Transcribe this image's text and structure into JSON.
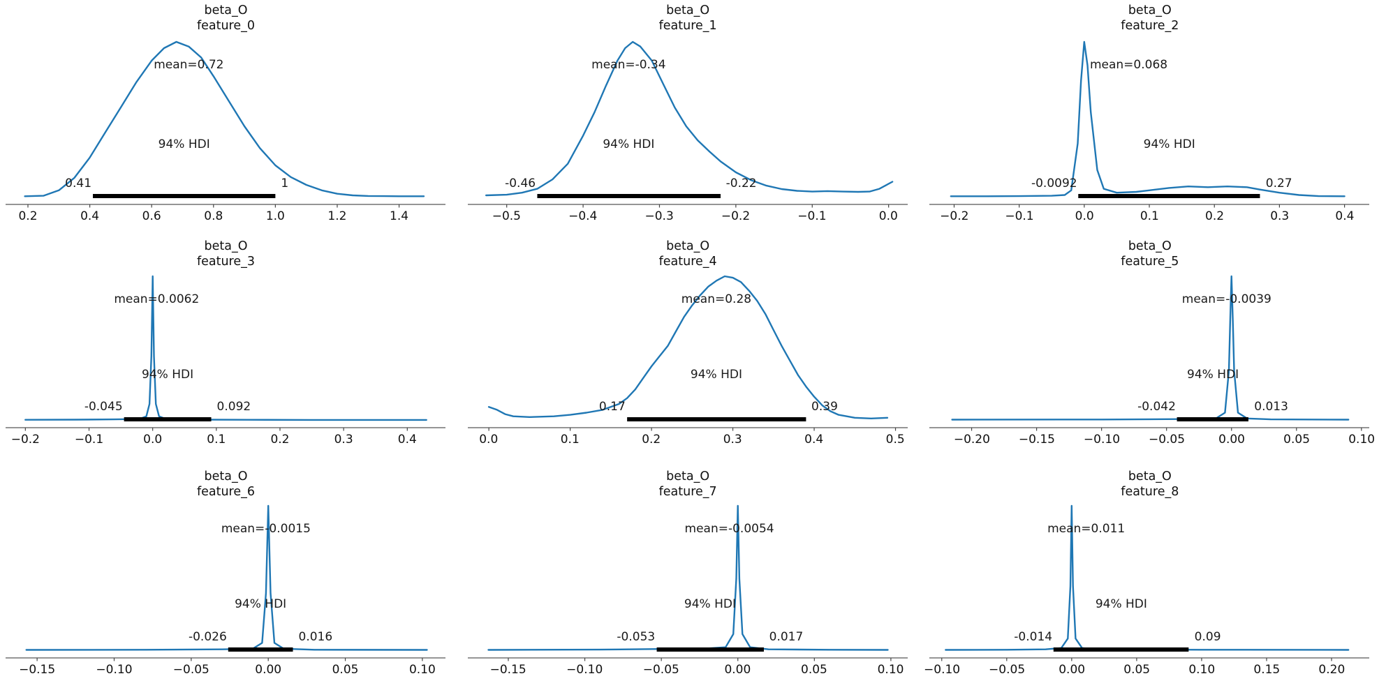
{
  "figure": {
    "background": "#ffffff",
    "curve_color": "#1f77b4",
    "hdi_bar_color": "#000000",
    "axis_color": "#565656",
    "text_color": "#1a1a1a",
    "hdi_probability": "94%"
  },
  "chart_data": [
    {
      "type": "line",
      "title": "beta_O",
      "subtitle": "feature_0",
      "mean": 0.72,
      "mean_label": "mean=0.72",
      "hdi_label": "94% HDI",
      "hdi": [
        0.41,
        1.0
      ],
      "hdi_lower_label": "0.41",
      "hdi_upper_label": "1",
      "xlim": [
        0.13,
        1.55
      ],
      "xticks": [
        0.2,
        0.4,
        0.6,
        0.8,
        1.0,
        1.2,
        1.4
      ],
      "xtick_labels": [
        "0.2",
        "0.4",
        "0.6",
        "0.8",
        "1.0",
        "1.2",
        "1.4"
      ],
      "curve": {
        "x": [
          0.19,
          0.25,
          0.3,
          0.35,
          0.4,
          0.45,
          0.5,
          0.55,
          0.6,
          0.64,
          0.68,
          0.72,
          0.76,
          0.8,
          0.85,
          0.9,
          0.95,
          1.0,
          1.05,
          1.1,
          1.15,
          1.2,
          1.25,
          1.3,
          1.35,
          1.4,
          1.48
        ],
        "y": [
          0.012,
          0.015,
          0.05,
          0.13,
          0.26,
          0.42,
          0.58,
          0.74,
          0.88,
          0.96,
          1.0,
          0.97,
          0.9,
          0.78,
          0.62,
          0.46,
          0.32,
          0.21,
          0.135,
          0.085,
          0.05,
          0.028,
          0.018,
          0.014,
          0.013,
          0.012,
          0.012
        ]
      }
    },
    {
      "type": "line",
      "title": "beta_O",
      "subtitle": "feature_1",
      "mean": -0.34,
      "mean_label": "mean=-0.34",
      "hdi_label": "94% HDI",
      "hdi": [
        -0.46,
        -0.22
      ],
      "hdi_lower_label": "-0.46",
      "hdi_upper_label": "-0.22",
      "xlim": [
        -0.55,
        0.025
      ],
      "xticks": [
        -0.5,
        -0.4,
        -0.3,
        -0.2,
        -0.1,
        0.0
      ],
      "xtick_labels": [
        "−0.5",
        "−0.4",
        "−0.3",
        "−0.2",
        "−0.1",
        "0.0"
      ],
      "curve": {
        "x": [
          -0.527,
          -0.5,
          -0.48,
          -0.46,
          -0.44,
          -0.42,
          -0.4,
          -0.385,
          -0.37,
          -0.355,
          -0.345,
          -0.335,
          -0.325,
          -0.31,
          -0.295,
          -0.28,
          -0.265,
          -0.25,
          -0.235,
          -0.22,
          -0.2,
          -0.18,
          -0.16,
          -0.14,
          -0.12,
          -0.1,
          -0.08,
          -0.06,
          -0.04,
          -0.025,
          -0.012,
          0.005
        ],
        "y": [
          0.018,
          0.022,
          0.035,
          0.06,
          0.12,
          0.22,
          0.4,
          0.55,
          0.72,
          0.88,
          0.96,
          1.0,
          0.97,
          0.88,
          0.73,
          0.58,
          0.46,
          0.37,
          0.3,
          0.235,
          0.165,
          0.115,
          0.08,
          0.058,
          0.047,
          0.042,
          0.045,
          0.042,
          0.04,
          0.042,
          0.06,
          0.105
        ]
      }
    },
    {
      "type": "line",
      "title": "beta_O",
      "subtitle": "feature_2",
      "mean": 0.068,
      "mean_label": "mean=0.068",
      "hdi_label": "94% HDI",
      "hdi": [
        -0.0092,
        0.27
      ],
      "hdi_lower_label": "-0.0092",
      "hdi_upper_label": "0.27",
      "xlim": [
        -0.237,
        0.438
      ],
      "xticks": [
        -0.2,
        -0.1,
        0.0,
        0.1,
        0.2,
        0.3,
        0.4
      ],
      "xtick_labels": [
        "−0.2",
        "−0.1",
        "0.0",
        "0.1",
        "0.2",
        "0.3",
        "0.4"
      ],
      "curve": {
        "x": [
          -0.205,
          -0.15,
          -0.1,
          -0.05,
          -0.03,
          -0.02,
          -0.01,
          -0.005,
          0.0,
          0.005,
          0.01,
          0.02,
          0.03,
          0.05,
          0.08,
          0.1,
          0.13,
          0.16,
          0.19,
          0.22,
          0.25,
          0.27,
          0.3,
          0.33,
          0.36,
          0.4
        ],
        "y": [
          0.012,
          0.012,
          0.013,
          0.015,
          0.02,
          0.05,
          0.35,
          0.75,
          1.0,
          0.85,
          0.55,
          0.18,
          0.06,
          0.035,
          0.04,
          0.05,
          0.065,
          0.075,
          0.07,
          0.075,
          0.07,
          0.055,
          0.035,
          0.02,
          0.013,
          0.012
        ]
      }
    },
    {
      "type": "line",
      "title": "beta_O",
      "subtitle": "feature_3",
      "mean": 0.0062,
      "mean_label": "mean=0.0062",
      "hdi_label": "94% HDI",
      "hdi": [
        -0.045,
        0.092
      ],
      "hdi_lower_label": "-0.045",
      "hdi_upper_label": "0.092",
      "xlim": [
        -0.23,
        0.46
      ],
      "xticks": [
        -0.2,
        -0.1,
        0.0,
        0.1,
        0.2,
        0.3,
        0.4
      ],
      "xtick_labels": [
        "−0.2",
        "−0.1",
        "0.0",
        "0.1",
        "0.2",
        "0.3",
        "0.4"
      ],
      "curve": {
        "x": [
          -0.2,
          -0.12,
          -0.06,
          -0.03,
          -0.02,
          -0.01,
          -0.005,
          -0.002,
          0.0,
          0.002,
          0.005,
          0.01,
          0.02,
          0.04,
          0.08,
          0.15,
          0.25,
          0.35,
          0.43
        ],
        "y": [
          0.011,
          0.012,
          0.014,
          0.016,
          0.018,
          0.035,
          0.12,
          0.45,
          1.0,
          0.45,
          0.12,
          0.035,
          0.018,
          0.015,
          0.012,
          0.011,
          0.01,
          0.01,
          0.01
        ]
      }
    },
    {
      "type": "line",
      "title": "beta_O",
      "subtitle": "feature_4",
      "mean": 0.28,
      "mean_label": "mean=0.28",
      "hdi_label": "94% HDI",
      "hdi": [
        0.17,
        0.39
      ],
      "hdi_lower_label": "0.17",
      "hdi_upper_label": "0.39",
      "xlim": [
        -0.025,
        0.515
      ],
      "xticks": [
        0.0,
        0.1,
        0.2,
        0.3,
        0.4,
        0.5
      ],
      "xtick_labels": [
        "0.0",
        "0.1",
        "0.2",
        "0.3",
        "0.4",
        "0.5"
      ],
      "curve": {
        "x": [
          0.0,
          0.01,
          0.02,
          0.03,
          0.05,
          0.08,
          0.1,
          0.12,
          0.14,
          0.16,
          0.17,
          0.18,
          0.19,
          0.2,
          0.21,
          0.22,
          0.23,
          0.24,
          0.25,
          0.26,
          0.27,
          0.28,
          0.29,
          0.3,
          0.31,
          0.32,
          0.33,
          0.34,
          0.35,
          0.36,
          0.37,
          0.38,
          0.39,
          0.4,
          0.41,
          0.42,
          0.43,
          0.45,
          0.47,
          0.49
        ],
        "y": [
          0.1,
          0.08,
          0.05,
          0.035,
          0.03,
          0.035,
          0.045,
          0.06,
          0.08,
          0.12,
          0.16,
          0.22,
          0.3,
          0.38,
          0.45,
          0.52,
          0.62,
          0.72,
          0.8,
          0.87,
          0.93,
          0.97,
          1.0,
          0.99,
          0.96,
          0.9,
          0.83,
          0.74,
          0.63,
          0.52,
          0.42,
          0.32,
          0.24,
          0.17,
          0.11,
          0.07,
          0.045,
          0.025,
          0.02,
          0.025
        ]
      }
    },
    {
      "type": "line",
      "title": "beta_O",
      "subtitle": "feature_5",
      "mean": -0.0039,
      "mean_label": "mean=-0.0039",
      "hdi_label": "94% HDI",
      "hdi": [
        -0.042,
        0.013
      ],
      "hdi_lower_label": "-0.042",
      "hdi_upper_label": "0.013",
      "xlim": [
        -0.232,
        0.106
      ],
      "xticks": [
        -0.2,
        -0.15,
        -0.1,
        -0.05,
        0.0,
        0.05,
        0.1
      ],
      "xtick_labels": [
        "−0.20",
        "−0.15",
        "−0.10",
        "−0.05",
        "0.00",
        "0.05",
        "0.10"
      ],
      "curve": {
        "x": [
          -0.215,
          -0.1,
          -0.04,
          -0.012,
          -0.005,
          -0.002,
          -0.001,
          0.0,
          0.001,
          0.002,
          0.005,
          0.012,
          0.03,
          0.09
        ],
        "y": [
          0.012,
          0.013,
          0.016,
          0.02,
          0.06,
          0.35,
          0.7,
          1.0,
          0.7,
          0.35,
          0.06,
          0.02,
          0.014,
          0.012
        ]
      }
    },
    {
      "type": "line",
      "title": "beta_O",
      "subtitle": "feature_6",
      "mean": -0.0015,
      "mean_label": "mean=-0.0015",
      "hdi_label": "94% HDI",
      "hdi": [
        -0.026,
        0.016
      ],
      "hdi_lower_label": "-0.026",
      "hdi_upper_label": "0.016",
      "xlim": [
        -0.17,
        0.115
      ],
      "xticks": [
        -0.15,
        -0.1,
        -0.05,
        0.0,
        0.05,
        0.1
      ],
      "xtick_labels": [
        "−0.15",
        "−0.10",
        "−0.05",
        "0.00",
        "0.05",
        "0.10"
      ],
      "curve": {
        "x": [
          -0.157,
          -0.08,
          -0.03,
          -0.01,
          -0.004,
          -0.0015,
          0.0,
          0.0015,
          0.004,
          0.01,
          0.03,
          0.103
        ],
        "y": [
          0.012,
          0.013,
          0.016,
          0.02,
          0.06,
          0.4,
          1.0,
          0.4,
          0.06,
          0.02,
          0.013,
          0.012
        ]
      }
    },
    {
      "type": "line",
      "title": "beta_O",
      "subtitle": "feature_7",
      "mean": -0.0054,
      "mean_label": "mean=-0.0054",
      "hdi_label": "94% HDI",
      "hdi": [
        -0.053,
        0.017
      ],
      "hdi_lower_label": "-0.053",
      "hdi_upper_label": "0.017",
      "xlim": [
        -0.176,
        0.111
      ],
      "xticks": [
        -0.15,
        -0.1,
        -0.05,
        0.0,
        0.05,
        0.1
      ],
      "xtick_labels": [
        "−0.15",
        "−0.10",
        "−0.05",
        "0.00",
        "0.05",
        "0.10"
      ],
      "curve": {
        "x": [
          -0.163,
          -0.09,
          -0.05,
          -0.02,
          -0.008,
          -0.003,
          -0.001,
          0.0,
          0.001,
          0.003,
          0.008,
          0.02,
          0.06,
          0.098
        ],
        "y": [
          0.012,
          0.014,
          0.018,
          0.022,
          0.03,
          0.12,
          0.5,
          1.0,
          0.5,
          0.12,
          0.03,
          0.016,
          0.013,
          0.012
        ]
      }
    },
    {
      "type": "line",
      "title": "beta_O",
      "subtitle": "feature_8",
      "mean": 0.011,
      "mean_label": "mean=0.011",
      "hdi_label": "94% HDI",
      "hdi": [
        -0.014,
        0.09
      ],
      "hdi_lower_label": "-0.014",
      "hdi_upper_label": "0.09",
      "xlim": [
        -0.109,
        0.229
      ],
      "xticks": [
        -0.1,
        -0.05,
        0.0,
        0.05,
        0.1,
        0.15,
        0.2
      ],
      "xtick_labels": [
        "−0.10",
        "−0.05",
        "0.00",
        "0.05",
        "0.10",
        "0.15",
        "0.20"
      ],
      "curve": {
        "x": [
          -0.097,
          -0.05,
          -0.02,
          -0.008,
          -0.003,
          -0.001,
          0.0,
          0.001,
          0.003,
          0.008,
          0.02,
          0.1,
          0.213
        ],
        "y": [
          0.012,
          0.013,
          0.016,
          0.025,
          0.09,
          0.45,
          1.0,
          0.45,
          0.09,
          0.025,
          0.015,
          0.013,
          0.012
        ]
      }
    }
  ]
}
